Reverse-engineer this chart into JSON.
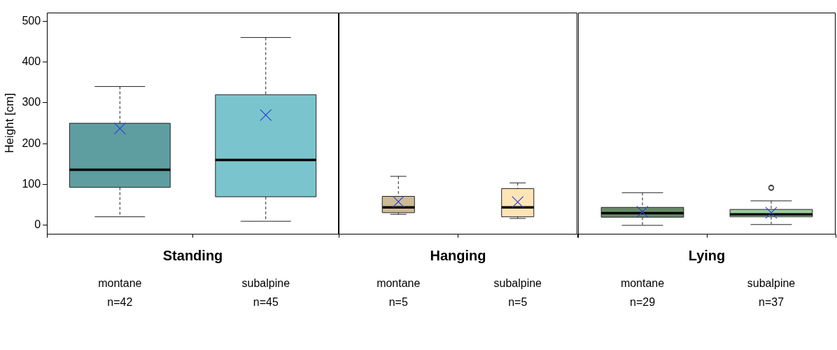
{
  "chart_data": [
    {
      "type": "box",
      "xlabel": "Standing",
      "ylabel": "Height [cm]",
      "categories": [
        "montane\nn=42",
        "subalpine\nn=45"
      ],
      "colors": [
        "#5f9ea0",
        "#7ac5cd"
      ],
      "marker": "cross",
      "ylim": [
        -20,
        521
      ],
      "yticks": [
        0,
        100,
        200,
        300,
        400,
        500
      ],
      "boxes": [
        {
          "low": 21,
          "q1": 93,
          "median": 136,
          "q3": 250,
          "high": 340,
          "mean": 237
        },
        {
          "low": 10,
          "q1": 70,
          "median": 160,
          "q3": 320,
          "high": 460,
          "mean": 270
        }
      ]
    },
    {
      "type": "box",
      "xlabel": "Hanging",
      "categories": [
        "montane\nn=5",
        "subalpine\nn=5"
      ],
      "colors": [
        "#cdba96",
        "#ffe4b5"
      ],
      "marker": "cross",
      "ylim": [
        -20,
        521
      ],
      "yticks": [
        0,
        100,
        200,
        300,
        400,
        500
      ],
      "tick_labels": "x",
      "boxes": [
        {
          "low": 27,
          "q1": 31,
          "median": 44,
          "q3": 71,
          "high": 120,
          "mean": 58
        },
        {
          "low": 17,
          "q1": 21,
          "median": 44,
          "q3": 90,
          "high": 104,
          "mean": 57
        }
      ]
    },
    {
      "type": "box",
      "xlabel": "Lying",
      "categories": [
        "montane\nn=29",
        "subalpine\nn=37"
      ],
      "colors": [
        "#698b69",
        "#9bcd9b"
      ],
      "marker": "cross",
      "ylim": [
        -20,
        521
      ],
      "yticks": [
        0,
        100,
        200,
        300,
        400,
        500
      ],
      "tick_labels": "x",
      "boxes": [
        {
          "low": 0,
          "q1": 20,
          "median": 30,
          "q3": 44,
          "high": 80,
          "mean": 33
        },
        {
          "low": 2,
          "q1": 21,
          "median": 27,
          "q3": 39,
          "high": 60,
          "mean": 31,
          "outliers": [
            91,
            93
          ]
        }
      ]
    }
  ]
}
